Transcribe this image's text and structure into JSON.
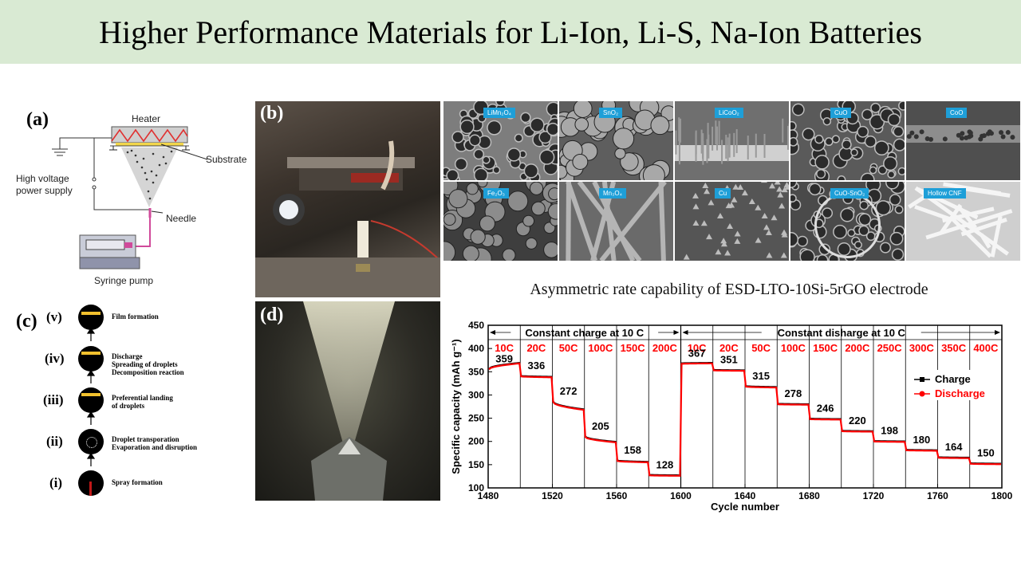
{
  "title": "Higher Performance Materials for Li-Ion, Li-S, Na-Ion Batteries",
  "panel_a": {
    "label": "(a)",
    "heater": "Heater",
    "substrate": "Substrate",
    "hv_line1": "High voltage",
    "hv_line2": "power supply",
    "needle": "Needle",
    "pump": "Syringe pump"
  },
  "panel_b": {
    "label": "(b)"
  },
  "panel_c": {
    "label": "(c)",
    "steps": [
      {
        "roman": "(v)",
        "text": "Film formation"
      },
      {
        "roman": "(iv)",
        "text": "Discharge\nSpreading of droplets\nDecomposition reaction"
      },
      {
        "roman": "(iii)",
        "text": "Preferential landing\nof droplets"
      },
      {
        "roman": "(ii)",
        "text": "Droplet transporation\nEvaporation and disruption"
      },
      {
        "roman": "(i)",
        "text": "Spray formation"
      }
    ]
  },
  "panel_d": {
    "label": "(d)"
  },
  "sem_tiles": [
    {
      "label": "LiMn₂O₄",
      "style": "honeycomb"
    },
    {
      "label": "SnO₂",
      "style": "spheres"
    },
    {
      "label": "LiCoO₂",
      "style": "film"
    },
    {
      "label": "CuO",
      "style": "porous"
    },
    {
      "label": "CoO",
      "style": "layer"
    },
    {
      "label": "Fe₂O₃",
      "style": "spheres-dark"
    },
    {
      "label": "Mn₃O₄",
      "style": "sheets"
    },
    {
      "label": "Cu",
      "style": "triangles"
    },
    {
      "label": "CuO-SnO₂",
      "style": "ball"
    },
    {
      "label": "Hollow CNF",
      "style": "fibers"
    }
  ],
  "chart_title": "Asymmetric rate capability of ESD-LTO-10Si-5rGO electrode",
  "chart_data": {
    "type": "line",
    "xlabel": "Cycle number",
    "ylabel": "Specific capacity (mAh g⁻¹)",
    "xlim": [
      1480,
      1800
    ],
    "ylim": [
      100,
      450
    ],
    "xticks": [
      1480,
      1520,
      1560,
      1600,
      1640,
      1680,
      1720,
      1760,
      1800
    ],
    "yticks": [
      100,
      150,
      200,
      250,
      300,
      350,
      400,
      450
    ],
    "section_labels": [
      {
        "text": "Constant charge at 10 C",
        "x_from": 1480,
        "x_to": 1600
      },
      {
        "text": "Constant disharge at 10 C",
        "x_from": 1600,
        "x_to": 1800
      }
    ],
    "segments": [
      {
        "rate": "10C",
        "x_from": 1480,
        "x_to": 1500,
        "value": 359,
        "start": 355,
        "end": 368
      },
      {
        "rate": "20C",
        "x_from": 1500,
        "x_to": 1520,
        "value": 336,
        "start": 340,
        "end": 338
      },
      {
        "rate": "50C",
        "x_from": 1520,
        "x_to": 1540,
        "value": 272,
        "start": 285,
        "end": 268
      },
      {
        "rate": "100C",
        "x_from": 1540,
        "x_to": 1560,
        "value": 205,
        "start": 210,
        "end": 198
      },
      {
        "rate": "150C",
        "x_from": 1560,
        "x_to": 1580,
        "value": 158,
        "start": 158,
        "end": 155
      },
      {
        "rate": "200C",
        "x_from": 1580,
        "x_to": 1600,
        "value": 128,
        "start": 127,
        "end": 126
      },
      {
        "rate": "10C",
        "x_from": 1600,
        "x_to": 1620,
        "value": 367,
        "start": 367,
        "end": 368
      },
      {
        "rate": "20C",
        "x_from": 1620,
        "x_to": 1640,
        "value": 351,
        "start": 353,
        "end": 352
      },
      {
        "rate": "50C",
        "x_from": 1640,
        "x_to": 1660,
        "value": 315,
        "start": 318,
        "end": 316
      },
      {
        "rate": "100C",
        "x_from": 1660,
        "x_to": 1680,
        "value": 278,
        "start": 280,
        "end": 279
      },
      {
        "rate": "150C",
        "x_from": 1680,
        "x_to": 1700,
        "value": 246,
        "start": 248,
        "end": 247
      },
      {
        "rate": "200C",
        "x_from": 1700,
        "x_to": 1720,
        "value": 220,
        "start": 222,
        "end": 221
      },
      {
        "rate": "250C",
        "x_from": 1720,
        "x_to": 1740,
        "value": 198,
        "start": 200,
        "end": 199
      },
      {
        "rate": "300C",
        "x_from": 1740,
        "x_to": 1760,
        "value": 180,
        "start": 181,
        "end": 180
      },
      {
        "rate": "350C",
        "x_from": 1760,
        "x_to": 1780,
        "value": 164,
        "start": 165,
        "end": 164
      },
      {
        "rate": "400C",
        "x_from": 1780,
        "x_to": 1800,
        "value": 150,
        "start": 152,
        "end": 151
      }
    ],
    "series": [
      {
        "name": "Charge",
        "color": "#000000",
        "marker": "square"
      },
      {
        "name": "Discharge",
        "color": "#ff0000",
        "marker": "circle"
      }
    ],
    "legend": "right",
    "rate_label_color": "#ff0000"
  }
}
